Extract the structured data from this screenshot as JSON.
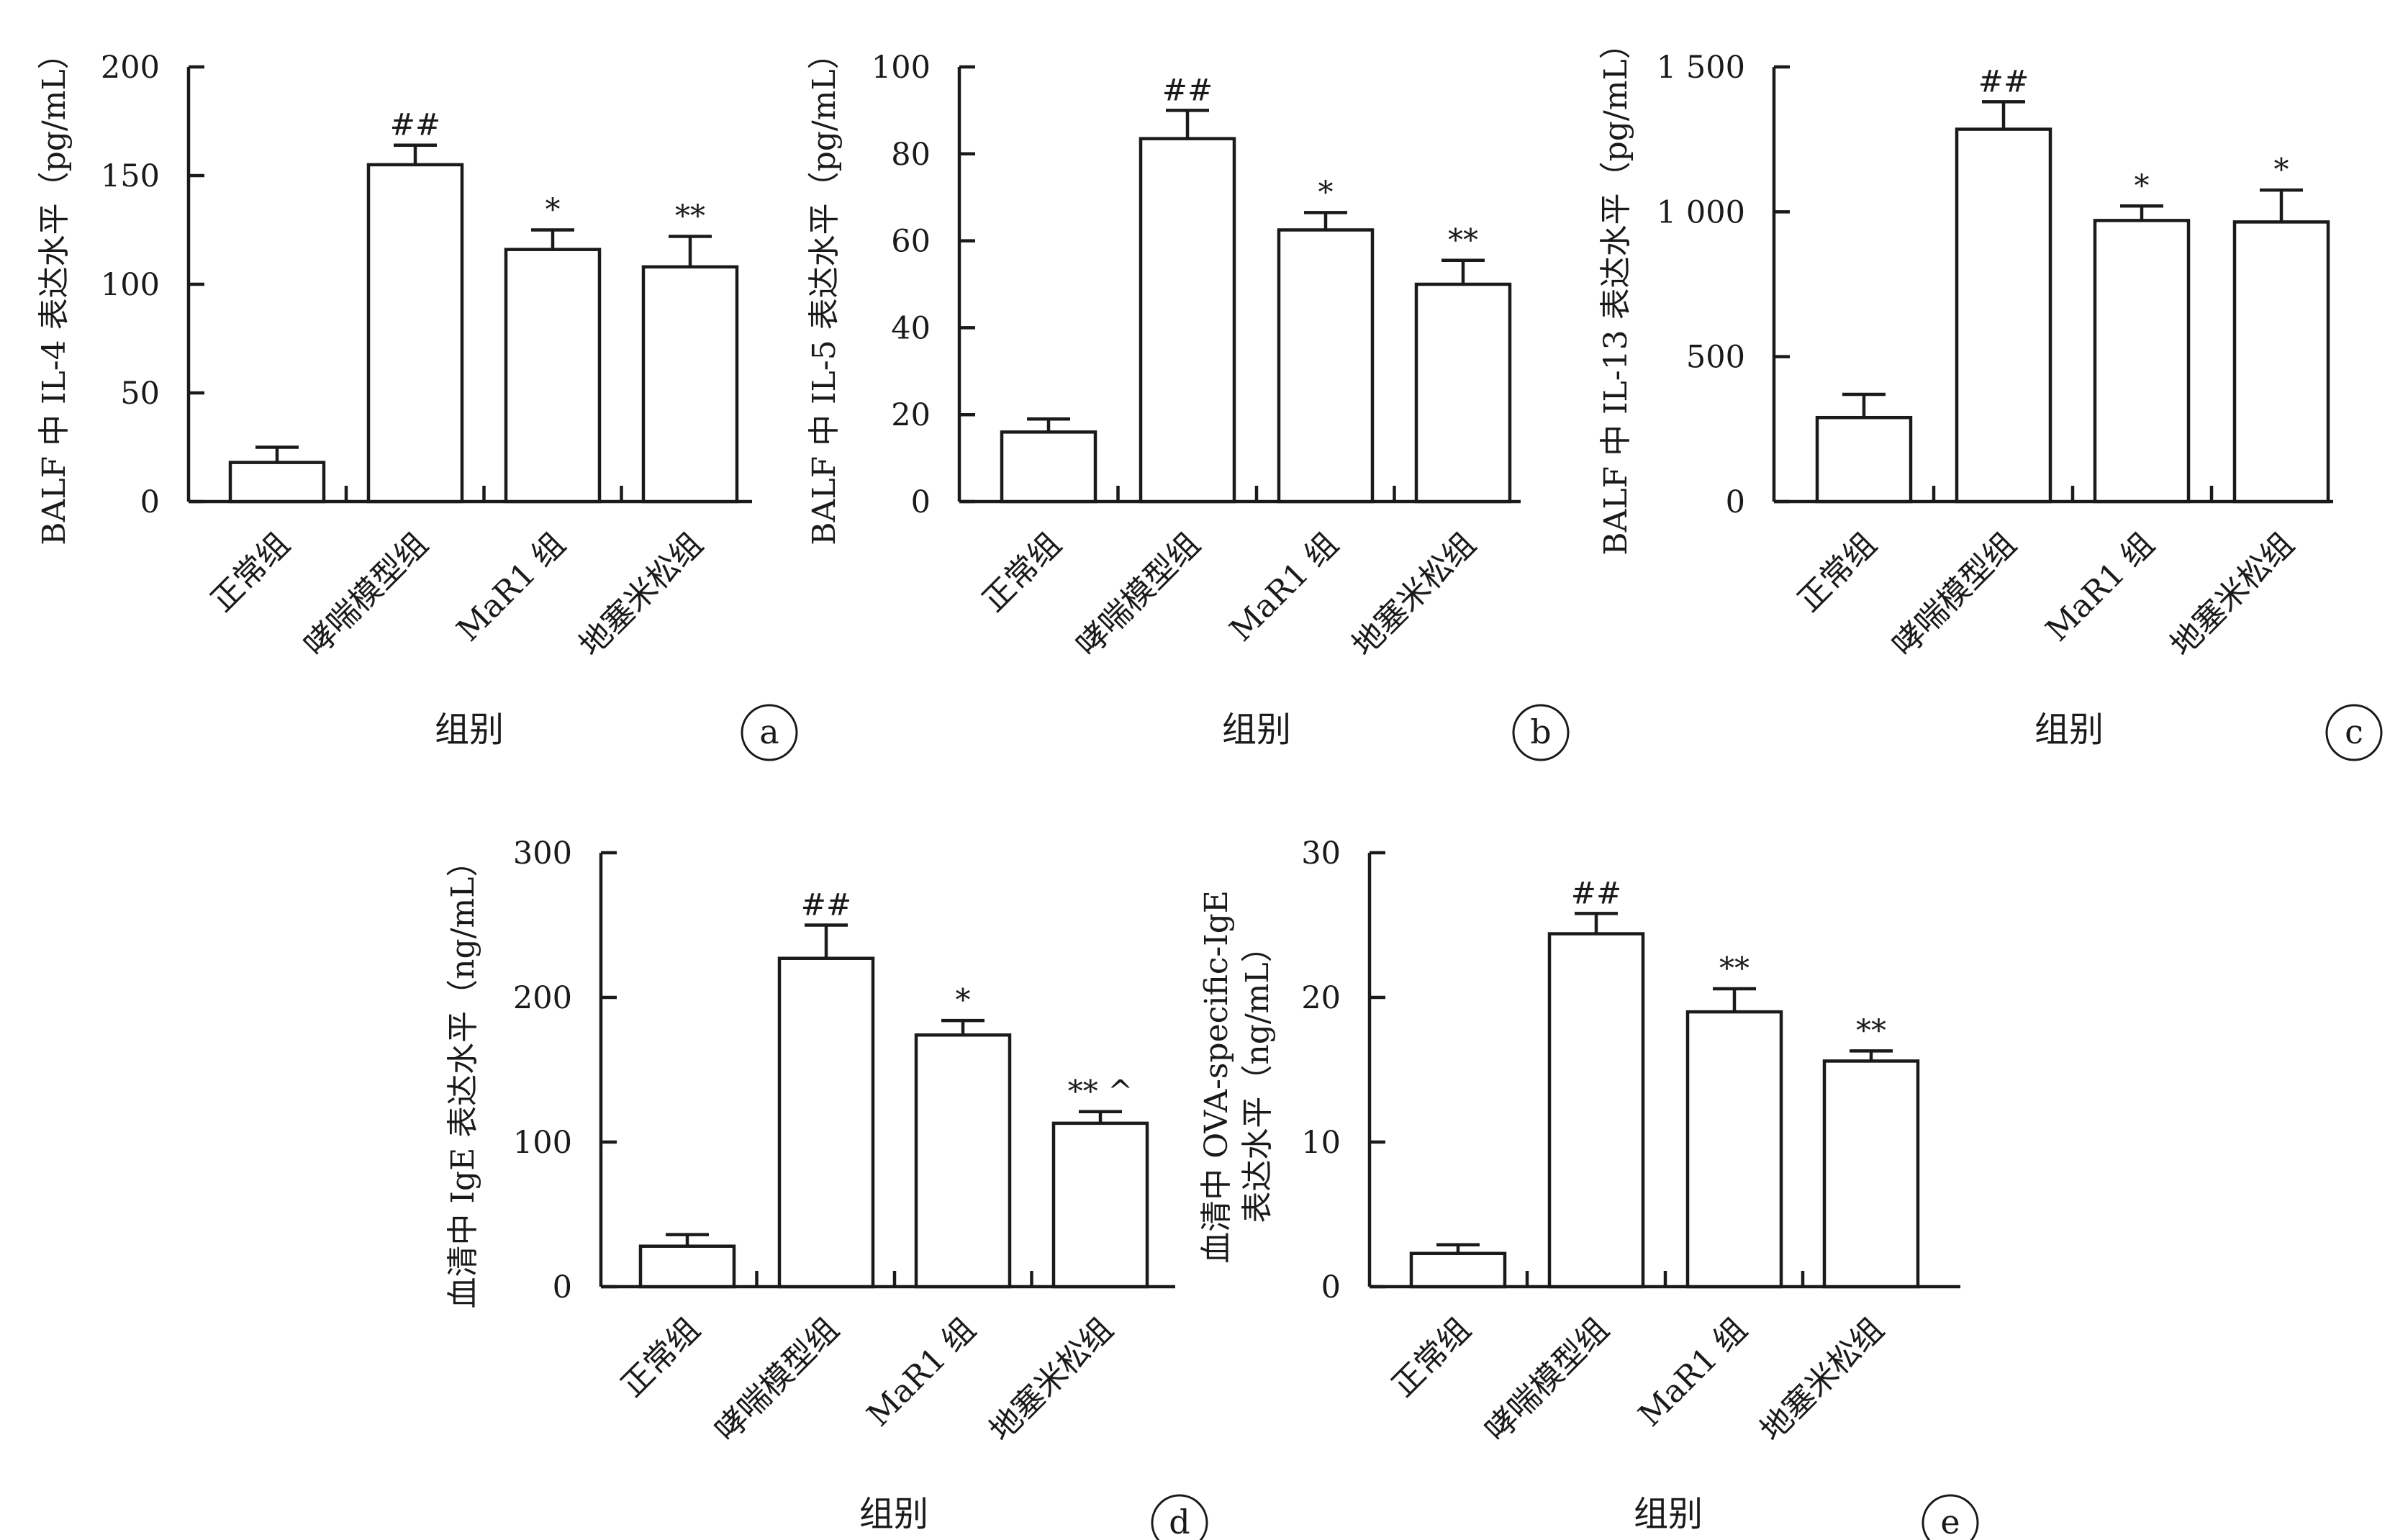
{
  "chart_data": [
    {
      "panel": "a",
      "type": "bar",
      "categories": [
        "正常组",
        "哮喘模型组",
        "MaR1 组",
        "地塞米松组"
      ],
      "values": [
        18,
        155,
        116,
        108
      ],
      "errors": [
        7,
        9,
        9,
        14
      ],
      "significance": [
        "",
        "##",
        "*",
        "**"
      ],
      "ylabel": "BALF 中 IL-4 表达水平（pg/mL）",
      "xlabel": "组别",
      "ylim": [
        0,
        200
      ],
      "yticks": [
        0,
        50,
        100,
        150,
        200
      ],
      "ytick_labels": [
        "0",
        "50",
        "100",
        "150",
        "200"
      ],
      "grid": false
    },
    {
      "panel": "b",
      "type": "bar",
      "categories": [
        "正常组",
        "哮喘模型组",
        "MaR1 组",
        "地塞米松组"
      ],
      "values": [
        16,
        83.5,
        62.5,
        50
      ],
      "errors": [
        3,
        6.5,
        4,
        5.5
      ],
      "significance": [
        "",
        "##",
        "*",
        "**"
      ],
      "ylabel": "BALF 中 IL-5 表达水平（pg/mL）",
      "xlabel": "组别",
      "ylim": [
        0,
        100
      ],
      "yticks": [
        0,
        20,
        40,
        60,
        80,
        100
      ],
      "ytick_labels": [
        "0",
        "20",
        "40",
        "60",
        "80",
        "100"
      ],
      "grid": false
    },
    {
      "panel": "c",
      "type": "bar",
      "categories": [
        "正常组",
        "哮喘模型组",
        "MaR1 组",
        "地塞米松组"
      ],
      "values": [
        290,
        1285,
        970,
        965
      ],
      "errors": [
        80,
        95,
        50,
        110
      ],
      "significance": [
        "",
        "##",
        "*",
        "*"
      ],
      "ylabel": "BALF 中 IL-13 表达水平（pg/mL）",
      "xlabel": "组别",
      "ylim": [
        0,
        1500
      ],
      "yticks": [
        0,
        500,
        1000,
        1500
      ],
      "ytick_labels": [
        "0",
        "500",
        "1 000",
        "1 500"
      ],
      "grid": false
    },
    {
      "panel": "d",
      "type": "bar",
      "categories": [
        "正常组",
        "哮喘模型组",
        "MaR1 组",
        "地塞米松组"
      ],
      "values": [
        28,
        227,
        174,
        113
      ],
      "errors": [
        8,
        23,
        10,
        8
      ],
      "significance": [
        "",
        "##",
        "*",
        "** ^"
      ],
      "ylabel": "血清中 IgE 表达水平（ng/mL）",
      "xlabel": "组别",
      "ylim": [
        0,
        300
      ],
      "yticks": [
        0,
        100,
        200,
        300
      ],
      "ytick_labels": [
        "0",
        "100",
        "200",
        "300"
      ],
      "grid": false
    },
    {
      "panel": "e",
      "type": "bar",
      "categories": [
        "正常组",
        "哮喘模型组",
        "MaR1 组",
        "地塞米松组"
      ],
      "values": [
        2.3,
        24.4,
        19,
        15.6
      ],
      "errors": [
        0.6,
        1.4,
        1.6,
        0.7
      ],
      "significance": [
        "",
        "##",
        "**",
        "**"
      ],
      "ylabel": [
        "血清中 OVA-specific-IgE",
        "表达水平（ng/mL）"
      ],
      "xlabel": "组别",
      "ylim": [
        0,
        30
      ],
      "yticks": [
        0,
        10,
        20,
        30
      ],
      "ytick_labels": [
        "0",
        "10",
        "20",
        "30"
      ],
      "grid": false
    }
  ]
}
